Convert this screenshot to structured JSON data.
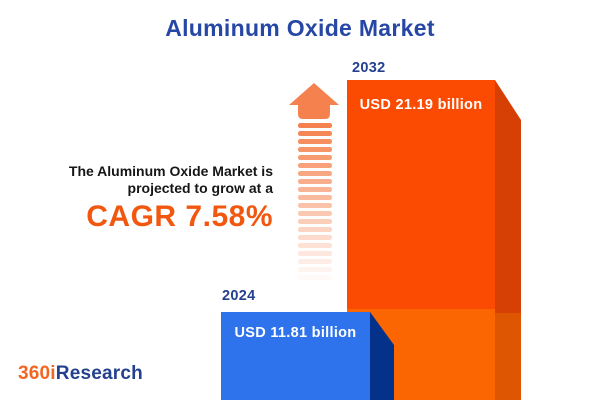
{
  "title": "Aluminum Oxide Market",
  "tagline": {
    "line1": "The Aluminum Oxide Market is",
    "line2": "projected to grow at a",
    "cagr": "CAGR 7.58%"
  },
  "chart_data": {
    "type": "bar",
    "categories": [
      "2024",
      "2032"
    ],
    "values": [
      11.81,
      21.19
    ],
    "unit": "USD billion",
    "value_labels": [
      "USD 11.81 billion",
      "USD 21.19 billion"
    ],
    "title": "Aluminum Oxide Market",
    "growth_annotation": "CAGR 7.58%",
    "legend_position": "none",
    "grid": false,
    "style": "3d-bars, value labels inside bars, year labels above bars"
  },
  "bars": {
    "b2024": {
      "year": "2024",
      "value_label": "USD 11.81 billion"
    },
    "b2032": {
      "year": "2032",
      "value_label": "USD 21.19 billion"
    }
  },
  "icons": {
    "growth_arrow": "up-arrow-with-fading-dashed-tail"
  },
  "arrow": {
    "dash_count": 20
  },
  "logo": {
    "prefix": "360i",
    "suffix": "Research"
  },
  "colors": {
    "title_blue": "#2747A5",
    "year_label_blue": "#24418F",
    "text_dark": "#161616",
    "cagr_orange": "#F2570F",
    "arrow_orange": "#F5824E",
    "bar2032_front_top": "#FB4A02",
    "bar2032_front_bottom": "#FC6602",
    "bar2032_side_top": "#D64004",
    "bar2032_side_bottom": "#DE5502",
    "bar2024_front": "#2E73EB",
    "bar2024_side": "#043189",
    "logo_orange": "#F26522",
    "logo_blue": "#24418F"
  }
}
